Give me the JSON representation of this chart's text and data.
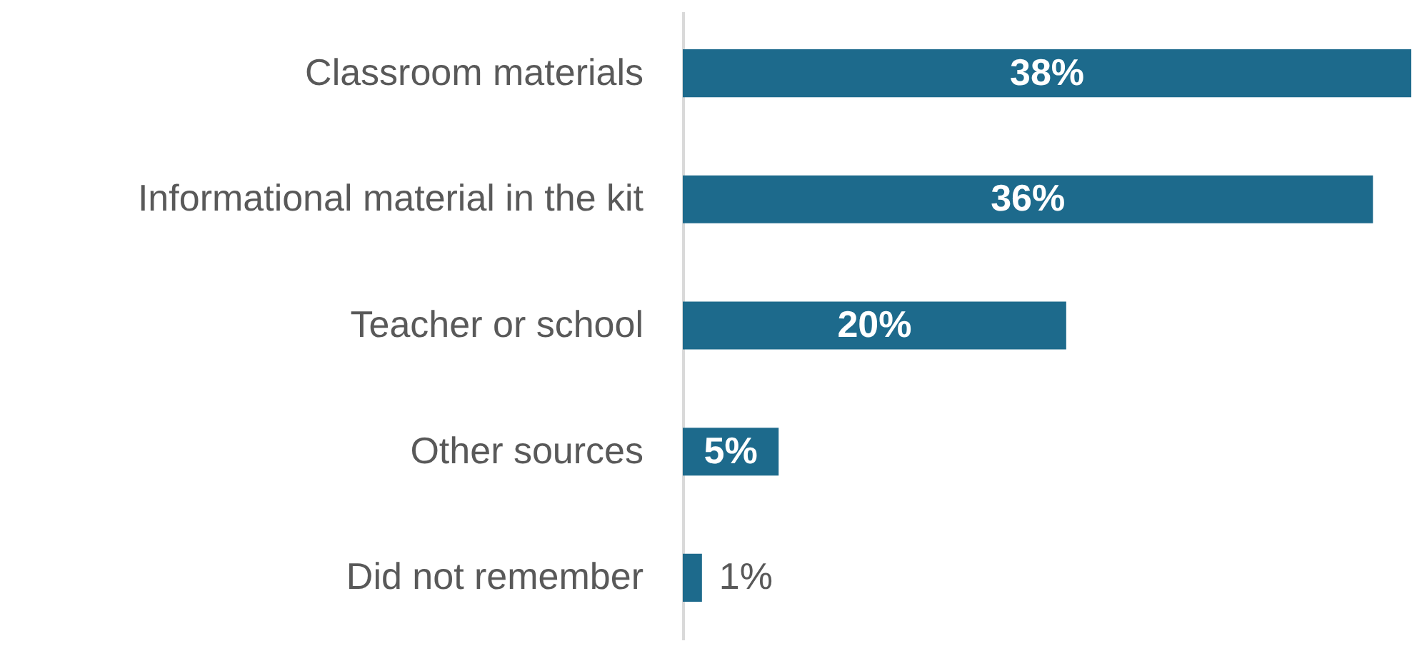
{
  "chart_data": {
    "type": "bar",
    "orientation": "horizontal",
    "categories": [
      "Classroom materials",
      "Informational material in the kit",
      "Teacher or school",
      "Other sources",
      "Did not remember"
    ],
    "values": [
      38,
      36,
      20,
      5,
      1
    ],
    "color": "#1d6a8c",
    "data_labels": true,
    "value_labels": [
      "38%",
      "36%",
      "20%",
      "5%",
      "1%"
    ]
  }
}
